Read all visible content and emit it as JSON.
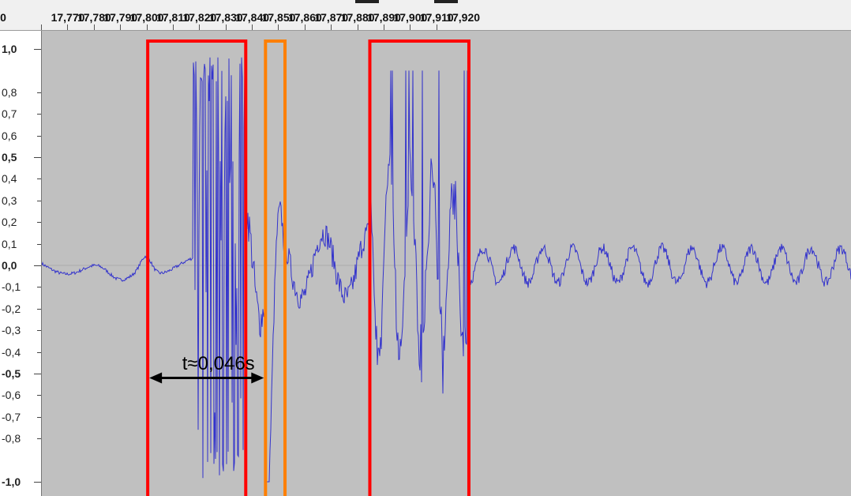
{
  "ruler": {
    "ticks": [
      {
        "label": "17,770",
        "t": 17.77
      },
      {
        "label": "17,780",
        "t": 17.78
      },
      {
        "label": "17,790",
        "t": 17.79
      },
      {
        "label": "17,800",
        "t": 17.8
      },
      {
        "label": "17,810",
        "t": 17.81
      },
      {
        "label": "17,820",
        "t": 17.82
      },
      {
        "label": "17,830",
        "t": 17.83
      },
      {
        "label": "17,840",
        "t": 17.84
      },
      {
        "label": "17,850",
        "t": 17.85
      },
      {
        "label": "17,860",
        "t": 17.86
      },
      {
        "label": "17,870",
        "t": 17.87
      },
      {
        "label": "17,880",
        "t": 17.88
      },
      {
        "label": "17,890",
        "t": 17.89
      },
      {
        "label": "17,900",
        "t": 17.9
      },
      {
        "label": "17,910",
        "t": 17.91
      },
      {
        "label": "17,920",
        "t": 17.92
      }
    ],
    "partial_left_label": "0"
  },
  "amplitude_scale": {
    "labels": [
      {
        "text": "1,0",
        "value": 1.0,
        "major": true
      },
      {
        "text": "0,8",
        "value": 0.8,
        "major": false
      },
      {
        "text": "0,7",
        "value": 0.7,
        "major": false
      },
      {
        "text": "0,6",
        "value": 0.6,
        "major": false
      },
      {
        "text": "0,5",
        "value": 0.5,
        "major": true
      },
      {
        "text": "0,4",
        "value": 0.4,
        "major": false
      },
      {
        "text": "0,3",
        "value": 0.3,
        "major": false
      },
      {
        "text": "0,2",
        "value": 0.2,
        "major": false
      },
      {
        "text": "0,1",
        "value": 0.1,
        "major": false
      },
      {
        "text": "0,0",
        "value": 0.0,
        "major": true
      },
      {
        "text": "-0,1",
        "value": -0.1,
        "major": false
      },
      {
        "text": "-0,2",
        "value": -0.2,
        "major": false
      },
      {
        "text": "-0,3",
        "value": -0.3,
        "major": false
      },
      {
        "text": "-0,4",
        "value": -0.4,
        "major": false
      },
      {
        "text": "-0,5",
        "value": -0.5,
        "major": true
      },
      {
        "text": "-0,6",
        "value": -0.6,
        "major": false
      },
      {
        "text": "-0,7",
        "value": -0.7,
        "major": false
      },
      {
        "text": "-0,8",
        "value": -0.8,
        "major": false
      },
      {
        "text": "-1,0",
        "value": -1.0,
        "major": true
      }
    ]
  },
  "colors": {
    "waveform": "#3333cc",
    "track_background": "#c0c0c0",
    "box_primary": "#ff0000",
    "box_secondary": "#ff7f00",
    "arrow": "#000000"
  },
  "annotations": {
    "boxes": [
      {
        "name": "red-box-1",
        "t_start": 17.8003,
        "t_end": 17.8375,
        "color": "box_primary"
      },
      {
        "name": "orange-box",
        "t_start": 17.845,
        "t_end": 17.8524,
        "color": "box_secondary"
      },
      {
        "name": "red-box-2",
        "t_start": 17.8846,
        "t_end": 17.9222,
        "color": "box_primary"
      }
    ],
    "arrow": {
      "t_start": 17.8003,
      "t_end": 17.845,
      "amplitude": -0.52
    },
    "label": "t≈0,046s"
  }
}
